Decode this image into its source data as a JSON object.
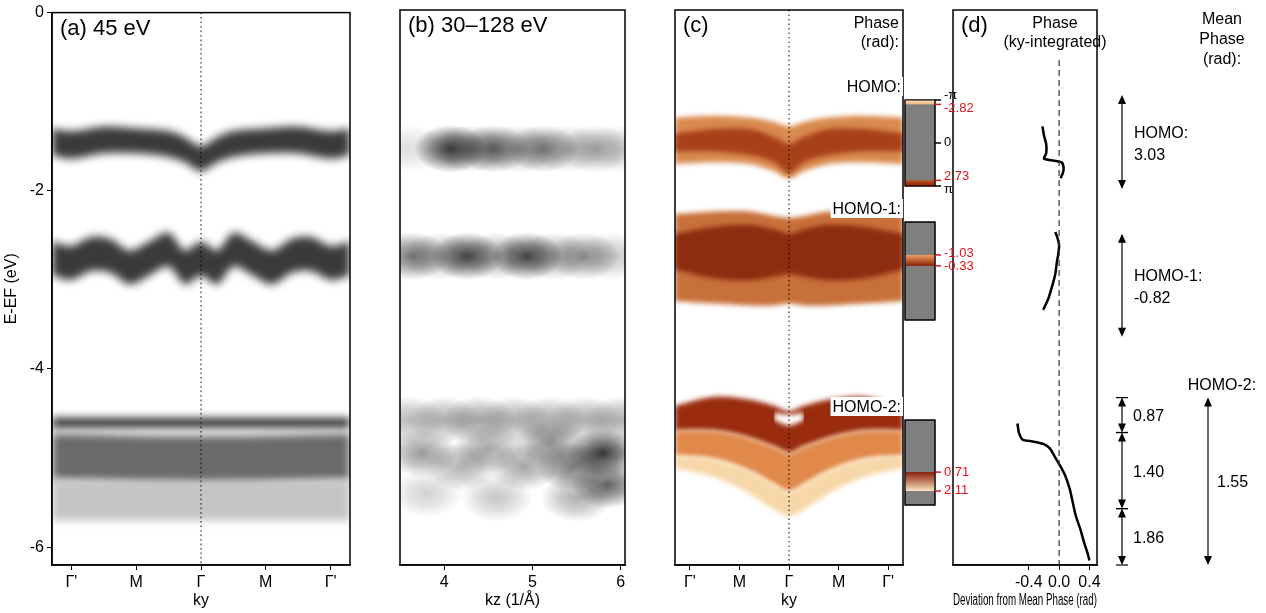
{
  "chart_data": [
    {
      "type": "area",
      "title": "(a) 45 eV",
      "xlabel": "ky",
      "ylabel": "E-EF (eV)",
      "xlim": [
        -2.3,
        2.3
      ],
      "xticks": [
        {
          "value": -2,
          "label": "Γ'"
        },
        {
          "value": -1,
          "label": "M"
        },
        {
          "value": 0,
          "label": "Γ"
        },
        {
          "value": 1,
          "label": "M"
        },
        {
          "value": 2,
          "label": "Γ'"
        }
      ],
      "ylim": [
        -6.2,
        0
      ],
      "yticks": [
        -6,
        -4,
        -2,
        0
      ],
      "grid": false,
      "series": [
        {
          "color": "#3a3a3a",
          "x": [
            -2.3,
            -2,
            -1.5,
            -1,
            -0.5,
            -0.25,
            0,
            0.25,
            0.5,
            1,
            1.5,
            2,
            2.3
          ],
          "upper": [
            -1.3,
            -1.33,
            -1.28,
            -1.3,
            -1.33,
            -1.4,
            -1.5,
            -1.4,
            -1.33,
            -1.3,
            -1.28,
            -1.33,
            -1.3
          ],
          "lower": [
            -1.6,
            -1.64,
            -1.58,
            -1.58,
            -1.62,
            -1.68,
            -1.78,
            -1.68,
            -1.62,
            -1.58,
            -1.58,
            -1.64,
            -1.6
          ]
        },
        {
          "color": "#3a3a3a",
          "x": [
            -2.3,
            -2,
            -1.7,
            -1.4,
            -1.1,
            -0.8,
            -0.5,
            -0.25,
            0,
            0.25,
            0.5,
            0.8,
            1.1,
            1.4,
            1.7,
            2,
            2.3
          ],
          "upper": [
            -2.57,
            -2.62,
            -2.52,
            -2.54,
            -2.67,
            -2.57,
            -2.47,
            -2.67,
            -2.57,
            -2.67,
            -2.47,
            -2.57,
            -2.67,
            -2.54,
            -2.52,
            -2.62,
            -2.57
          ],
          "lower": [
            -2.95,
            -3.0,
            -2.9,
            -2.92,
            -3.05,
            -2.95,
            -2.85,
            -3.05,
            -2.95,
            -3.05,
            -2.85,
            -2.95,
            -3.05,
            -2.92,
            -2.9,
            -3.0,
            -2.95
          ]
        },
        {
          "color": "#2a2a2a",
          "x": [
            -2.3,
            2.3
          ],
          "upper": [
            -4.55,
            -4.55
          ],
          "lower": [
            -4.66,
            -4.66
          ]
        },
        {
          "color": "#6a6a6a",
          "x": [
            -2.3,
            0,
            2.3
          ],
          "upper": [
            -4.72,
            -4.75,
            -4.72
          ],
          "lower": [
            -5.25,
            -5.3,
            -5.25
          ]
        },
        {
          "color": "#c4c4c4",
          "x": [
            -2.3,
            2.3
          ],
          "upper": [
            -5.25,
            -5.25
          ],
          "lower": [
            -5.7,
            -5.7
          ]
        }
      ]
    },
    {
      "type": "scatter",
      "title": "(b) 30–128 eV",
      "xlabel": "kz (1/Å)",
      "xlim": [
        3.5,
        6.05
      ],
      "xticks": [
        4,
        5,
        6
      ],
      "ylim": [
        -6.2,
        0
      ],
      "grid": false,
      "tick_labels": "x",
      "series": [
        {
          "color": "#1e1e1e",
          "x": [
            4.07,
            4.56,
            5.12,
            5.72,
            3.6,
            4.3,
            4.85,
            5.42,
            6.0,
            3.64,
            4.26,
            4.94,
            5.58,
            3.95,
            4.6,
            5.25,
            5.9,
            3.6,
            4.0,
            4.4,
            4.8,
            5.2,
            5.6,
            6.0,
            3.75,
            4.2,
            4.5,
            4.9,
            5.2,
            5.45,
            5.8,
            5.85,
            5.5,
            4.6,
            3.8
          ],
          "values": [
            -1.55,
            -1.55,
            -1.55,
            -1.55,
            -1.55,
            -1.55,
            -1.55,
            -1.55,
            -1.55,
            -2.75,
            -2.75,
            -2.75,
            -2.75,
            -2.75,
            -2.75,
            -2.75,
            -2.75,
            -4.58,
            -4.58,
            -4.58,
            -4.58,
            -4.58,
            -4.58,
            -4.58,
            -4.95,
            -5.1,
            -4.9,
            -5.1,
            -4.85,
            -5.1,
            -4.95,
            -5.3,
            -5.45,
            -5.45,
            -5.4
          ],
          "intensity": [
            0.85,
            0.65,
            0.55,
            0.35,
            0.15,
            0.35,
            0.3,
            0.25,
            0.2,
            0.6,
            0.8,
            0.8,
            0.45,
            0.3,
            0.35,
            0.35,
            0.25,
            0.3,
            0.35,
            0.4,
            0.35,
            0.35,
            0.35,
            0.35,
            0.45,
            0.35,
            0.4,
            0.4,
            0.5,
            0.6,
            0.9,
            0.7,
            0.35,
            0.25,
            0.2
          ]
        }
      ]
    },
    {
      "type": "area",
      "title": "(c)",
      "xlabel": "ky",
      "xlim": [
        -2.3,
        2.3
      ],
      "xticks": [
        {
          "value": -2,
          "label": "Γ'"
        },
        {
          "value": -1,
          "label": "M"
        },
        {
          "value": 0,
          "label": "Γ"
        },
        {
          "value": 1,
          "label": "M"
        },
        {
          "value": 2,
          "label": "Γ'"
        }
      ],
      "ylim": [
        -6.2,
        0
      ],
      "grid": false,
      "tick_labels": "x",
      "series": [
        {
          "color": "#d98a4e",
          "x": [
            -2.3,
            -1.5,
            -0.8,
            -0.3,
            0,
            0.3,
            0.8,
            1.5,
            2.3
          ],
          "upper": [
            -1.2,
            -1.18,
            -1.2,
            -1.25,
            -1.3,
            -1.25,
            -1.2,
            -1.18,
            -1.2
          ],
          "lower": [
            -1.72,
            -1.7,
            -1.72,
            -1.8,
            -1.88,
            -1.8,
            -1.72,
            -1.7,
            -1.72
          ]
        },
        {
          "color": "#a8401a",
          "x": [
            -2.3,
            -1.5,
            -0.8,
            -0.3,
            0,
            0.3,
            0.8,
            1.5,
            2.3
          ],
          "upper": [
            -1.38,
            -1.33,
            -1.33,
            -1.42,
            -1.5,
            -1.42,
            -1.33,
            -1.33,
            -1.38
          ],
          "lower": [
            -1.58,
            -1.58,
            -1.62,
            -1.7,
            -1.82,
            -1.7,
            -1.62,
            -1.58,
            -1.58
          ]
        },
        {
          "color": "#c8703a",
          "x": [
            -2.3,
            -1.5,
            -0.8,
            -0.3,
            0,
            0.3,
            0.8,
            1.5,
            2.3
          ],
          "upper": [
            -2.28,
            -2.25,
            -2.25,
            -2.3,
            -2.32,
            -2.3,
            -2.25,
            -2.25,
            -2.28
          ],
          "lower": [
            -3.25,
            -3.28,
            -3.3,
            -3.3,
            -3.28,
            -3.3,
            -3.3,
            -3.28,
            -3.25
          ]
        },
        {
          "color": "#8e2c10",
          "x": [
            -2.3,
            -1.5,
            -0.8,
            -0.3,
            0,
            0.3,
            0.8,
            1.5,
            2.3
          ],
          "upper": [
            -2.5,
            -2.42,
            -2.4,
            -2.45,
            -2.5,
            -2.45,
            -2.4,
            -2.42,
            -2.5
          ],
          "lower": [
            -2.9,
            -3.0,
            -3.02,
            -2.98,
            -2.95,
            -2.98,
            -3.02,
            -3.0,
            -2.9
          ]
        },
        {
          "color": "#9a2c0e",
          "x": [
            -2.3,
            -1.5,
            -0.8,
            -0.3,
            0,
            0.3,
            0.8,
            1.5,
            2.3
          ],
          "upper": [
            -4.42,
            -4.32,
            -4.35,
            -4.42,
            -4.48,
            -4.42,
            -4.35,
            -4.32,
            -4.42
          ],
          "lower": [
            -4.7,
            -4.7,
            -4.78,
            -4.88,
            -4.95,
            -4.88,
            -4.78,
            -4.7,
            -4.7
          ]
        },
        {
          "color": "#e0894a",
          "x": [
            -2.3,
            -1.5,
            -0.8,
            -0.3,
            0,
            0.3,
            0.8,
            1.5,
            2.3
          ],
          "upper": [
            -4.7,
            -4.7,
            -4.78,
            -4.88,
            -4.95,
            -4.88,
            -4.78,
            -4.7,
            -4.7
          ],
          "lower": [
            -4.98,
            -5.02,
            -5.15,
            -5.3,
            -5.38,
            -5.3,
            -5.15,
            -5.02,
            -4.98
          ]
        },
        {
          "color": "#f7d7a8",
          "x": [
            -2.3,
            -1.5,
            -0.8,
            -0.3,
            0,
            0.3,
            0.8,
            1.5,
            2.3
          ],
          "upper": [
            -4.98,
            -5.02,
            -5.15,
            -5.3,
            -5.38,
            -5.3,
            -5.15,
            -5.02,
            -4.98
          ],
          "lower": [
            -5.12,
            -5.22,
            -5.4,
            -5.58,
            -5.65,
            -5.58,
            -5.4,
            -5.22,
            -5.12
          ]
        },
        {
          "color": "#ffffff",
          "x": [
            -0.3,
            0,
            0.3
          ],
          "upper": [
            -4.5,
            -4.52,
            -4.5
          ],
          "lower": [
            -4.58,
            -4.64,
            -4.58
          ]
        }
      ],
      "colorbar_title": "Phase (rad):",
      "colorbars": [
        {
          "name": "HOMO:",
          "color": "#7f7f7f",
          "lim": [
            -3.14159,
            3.14159
          ],
          "ticks": [
            {
              "value": -3.14159,
              "label": "-π"
            },
            0,
            {
              "value": 3.14159,
              "label": "π"
            }
          ],
          "range_ticks": [
            -2.82,
            2.73
          ],
          "segments": [
            {
              "from": -3.14159,
              "to": -2.82,
              "colors": [
                "#fbe3c0",
                "#f2b27a"
              ]
            },
            {
              "from": 2.73,
              "to": 3.14159,
              "colors": [
                "#c0501c",
                "#8a1e08"
              ]
            }
          ]
        },
        {
          "name": "HOMO-1:",
          "color": "#7f7f7f",
          "lim": [
            -3.14159,
            3.14159
          ],
          "range_ticks": [
            -1.03,
            -0.33
          ],
          "segments": [
            {
              "from": -1.03,
              "to": -0.33,
              "colors": [
                "#f0a060",
                "#8a1e08"
              ]
            }
          ]
        },
        {
          "name": "HOMO-2:",
          "color": "#7f7f7f",
          "lim": [
            -3.14159,
            3.14159
          ],
          "range_ticks": [
            0.71,
            2.11
          ],
          "segments": [
            {
              "from": 0.71,
              "to": 2.11,
              "colors": [
                "#8a1e08",
                "#fbe3c0"
              ]
            }
          ]
        }
      ]
    },
    {
      "type": "line",
      "title": "(d)",
      "subtitle": "Phase (ky-integrated)",
      "xlabel": "Deviation from Mean Phase (rad)",
      "xlim": [
        -1.4,
        0.5
      ],
      "xticks": [
        -0.4,
        {
          "value": 0,
          "label": "0.0"
        },
        0.4
      ],
      "ylim": [
        -6.2,
        0
      ],
      "grid": false,
      "tick_labels": "x",
      "series": [
        {
          "color": "#000000",
          "x": [
            -0.22,
            -0.2,
            -0.17,
            -0.17,
            -0.2,
            0.03,
            0.06,
            0.05,
            0.02
          ],
          "values": [
            -1.3,
            -1.4,
            -1.5,
            -1.6,
            -1.66,
            -1.7,
            -1.76,
            -1.82,
            -1.88
          ]
        },
        {
          "color": "#000000",
          "x": [
            -0.05,
            -0.02,
            0.0,
            -0.01,
            -0.03,
            -0.05,
            -0.09,
            -0.14,
            -0.21
          ],
          "values": [
            -2.48,
            -2.55,
            -2.63,
            -2.72,
            -2.82,
            -2.95,
            -3.08,
            -3.22,
            -3.35
          ]
        },
        {
          "color": "#000000",
          "x": [
            -0.55,
            -0.53,
            -0.48,
            -0.35,
            -0.2,
            -0.12,
            -0.05,
            0.02,
            0.08,
            0.14,
            0.18,
            0.22,
            0.28,
            0.33,
            0.38,
            0.4
          ],
          "values": [
            -4.62,
            -4.72,
            -4.8,
            -4.82,
            -4.85,
            -4.9,
            -5.0,
            -5.1,
            -5.2,
            -5.35,
            -5.5,
            -5.65,
            -5.8,
            -5.95,
            -6.08,
            -6.15
          ]
        }
      ],
      "mean_phase_title": "Mean Phase (rad):",
      "mean_phase": [
        {
          "name": "HOMO:",
          "value": 3.03,
          "range": [
            -0.95,
            -2.0
          ]
        },
        {
          "name": "HOMO-1:",
          "value": -0.82,
          "range": [
            -2.5,
            -3.65
          ]
        },
        {
          "name": "HOMO-2:",
          "value": 1.55,
          "range": [
            -4.33,
            -6.2
          ],
          "sub": [
            {
              "value": 0.87,
              "range": [
                -4.33,
                -4.72
              ]
            },
            {
              "value": 1.4,
              "label": "1.40",
              "range": [
                -4.72,
                -5.57
              ]
            },
            {
              "value": 1.86,
              "range": [
                -5.57,
                -6.2
              ]
            }
          ]
        }
      ]
    }
  ]
}
